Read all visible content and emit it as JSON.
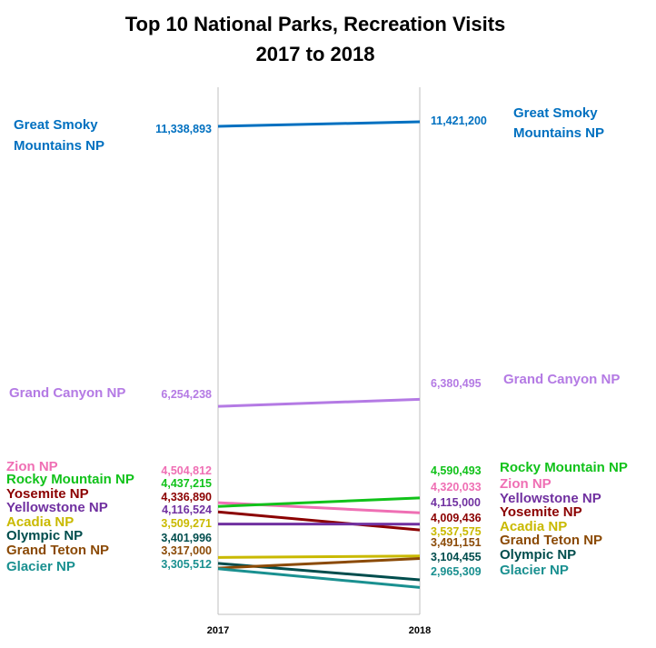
{
  "chart_data": {
    "type": "line",
    "title_lines": [
      "Top 10 National Parks, Recreation Visits",
      "2017 to 2018"
    ],
    "x": [
      "2017",
      "2018"
    ],
    "xlabel": "",
    "ylabel": "",
    "grid": false,
    "legend": "none (direct labels at both ends of each line)",
    "series": [
      {
        "name": "Great Smoky Mountains NP",
        "label_lines": [
          "Great Smoky",
          "Mountains NP"
        ],
        "values": [
          11338893,
          11421200
        ],
        "value_labels": [
          "11,338,893",
          "11,421,200"
        ],
        "color": "#0070c0"
      },
      {
        "name": "Grand Canyon NP",
        "label_lines": [
          "Grand Canyon NP"
        ],
        "values": [
          6254238,
          6380495
        ],
        "value_labels": [
          "6,254,238",
          "6,380,495"
        ],
        "color": "#b47ae4"
      },
      {
        "name": "Zion NP",
        "label_lines": [
          "Zion NP"
        ],
        "values": [
          4504812,
          4320033
        ],
        "value_labels": [
          "4,504,812",
          "4,320,033"
        ],
        "color": "#ef6fb4"
      },
      {
        "name": "Rocky Mountain NP",
        "label_lines": [
          "Rocky Mountain NP"
        ],
        "values": [
          4437215,
          4590493
        ],
        "value_labels": [
          "4,437,215",
          "4,590,493"
        ],
        "color": "#11c21a"
      },
      {
        "name": "Yosemite NP",
        "label_lines": [
          "Yosemite NP"
        ],
        "values": [
          4336890,
          4009436
        ],
        "value_labels": [
          "4,336,890",
          "4,009,436"
        ],
        "color": "#8b0000"
      },
      {
        "name": "Yellowstone NP",
        "label_lines": [
          "Yellowstone NP"
        ],
        "values": [
          4116524,
          4115000
        ],
        "value_labels": [
          "4,116,524",
          "4,115,000"
        ],
        "color": "#7030a0"
      },
      {
        "name": "Acadia NP",
        "label_lines": [
          "Acadia NP"
        ],
        "values": [
          3509271,
          3537575
        ],
        "value_labels": [
          "3,509,271",
          "3,537,575"
        ],
        "color": "#c9b900"
      },
      {
        "name": "Olympic NP",
        "label_lines": [
          "Olympic NP"
        ],
        "values": [
          3401996,
          3104455
        ],
        "value_labels": [
          "3,401,996",
          "3,104,455"
        ],
        "color": "#004d4d"
      },
      {
        "name": "Grand Teton NP",
        "label_lines": [
          "Grand Teton NP"
        ],
        "values": [
          3317000,
          3491151
        ],
        "value_labels": [
          "3,317,000",
          "3,491,151"
        ],
        "color": "#8b4a06"
      },
      {
        "name": "Glacier NP",
        "label_lines": [
          "Glacier NP"
        ],
        "values": [
          3305512,
          2965309
        ],
        "value_labels": [
          "3,305,512",
          "2,965,309"
        ],
        "color": "#1a9090"
      }
    ]
  }
}
